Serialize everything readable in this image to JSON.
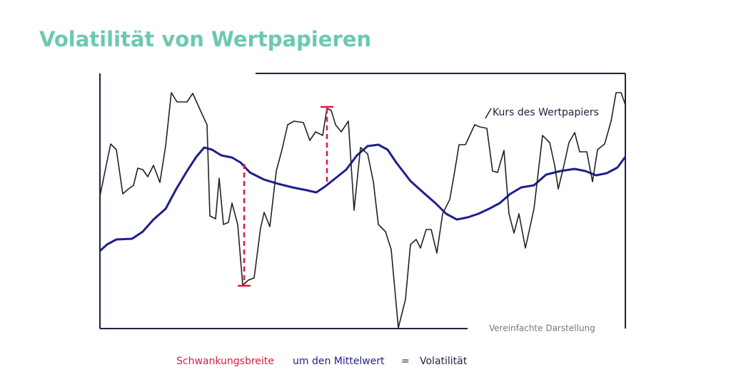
{
  "title": "Volatilität von Wertpapieren",
  "chart": {
    "line_label": "Kurs des Wertpapiers",
    "note": "Vereinfachte Darstellung"
  },
  "legend": {
    "range": "Schwankungsbreite",
    "mean": "um den Mittelwert",
    "equals": "=",
    "result": "Volatilität"
  }
}
